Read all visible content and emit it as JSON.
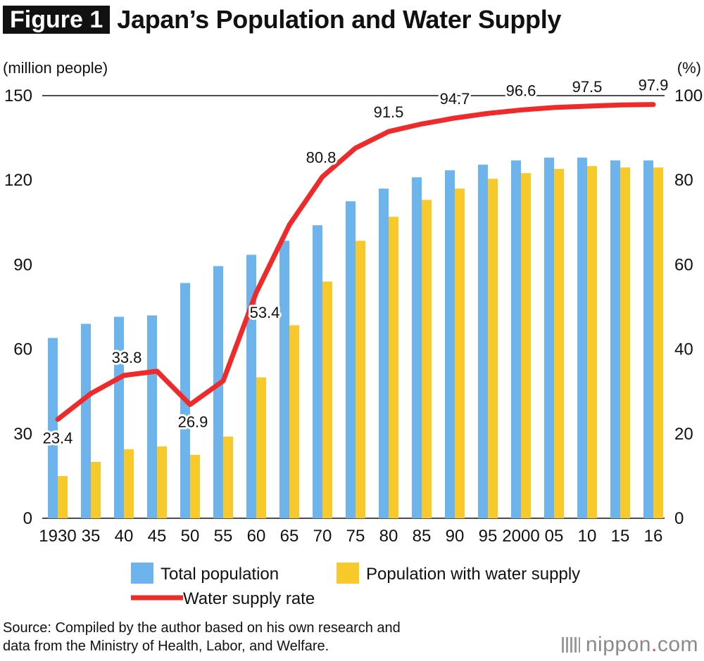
{
  "figure": {
    "badge": "Figure 1",
    "title": "Japan’s Population and Water Supply",
    "source_line1": "Source: Compiled by the author based on his own research and",
    "source_line2": "data from the Ministry of Health, Labor, and Welfare.",
    "brand_name": "nippon",
    "brand_dot": ".",
    "brand_tld": "com"
  },
  "colors": {
    "total_bar": "#6cb4eb",
    "supply_bar": "#f7c92a",
    "rate_line": "#ee2a2a",
    "text": "#111111"
  },
  "chart_data": {
    "type": "bar",
    "title": "Japan’s Population and Water Supply",
    "ylabel_left": "(million people)",
    "ylabel_right": "(%)",
    "ylim_left": [
      0,
      150
    ],
    "ylim_right": [
      0,
      100
    ],
    "yticks_left": [
      0,
      30,
      60,
      90,
      120,
      150
    ],
    "yticks_right": [
      0,
      20,
      40,
      60,
      80,
      100
    ],
    "categories": [
      "1930",
      "35",
      "40",
      "45",
      "50",
      "55",
      "60",
      "65",
      "70",
      "75",
      "80",
      "85",
      "90",
      "95",
      "2000",
      "05",
      "10",
      "15",
      "16"
    ],
    "series": [
      {
        "name": "Total population",
        "type": "bar",
        "axis": "left",
        "values": [
          64,
          69,
          71.5,
          72,
          83.5,
          89.5,
          93.5,
          98.5,
          104,
          112.5,
          117,
          121,
          123.5,
          125.5,
          127,
          128,
          128,
          127,
          127
        ]
      },
      {
        "name": "Population with water supply",
        "type": "bar",
        "axis": "left",
        "values": [
          15,
          20,
          24.5,
          25.5,
          22.5,
          29,
          50,
          68.5,
          84,
          98.5,
          107,
          113,
          117,
          120.5,
          122.5,
          124,
          125,
          124.5,
          124.5
        ]
      },
      {
        "name": "Water supply rate",
        "type": "line",
        "axis": "right",
        "values": [
          23.4,
          29.5,
          33.8,
          34.8,
          26.9,
          32.5,
          53.4,
          69.4,
          80.8,
          87.6,
          91.5,
          93.3,
          94.7,
          95.8,
          96.6,
          97.2,
          97.5,
          97.8,
          97.9
        ]
      }
    ],
    "data_labels": [
      {
        "index": 0,
        "text": "23.4"
      },
      {
        "index": 2,
        "text": "33.8"
      },
      {
        "index": 4,
        "text": "26.9"
      },
      {
        "index": 6,
        "text": "53.4"
      },
      {
        "index": 8,
        "text": "80.8"
      },
      {
        "index": 10,
        "text": "91.5"
      },
      {
        "index": 12,
        "text": "94.7"
      },
      {
        "index": 14,
        "text": "96.6"
      },
      {
        "index": 16,
        "text": "97.5"
      },
      {
        "index": 18,
        "text": "97.9"
      }
    ],
    "legend": {
      "placement": "bottom",
      "items": [
        "Total population",
        "Population with water supply",
        "Water supply rate"
      ]
    },
    "grid": false
  }
}
